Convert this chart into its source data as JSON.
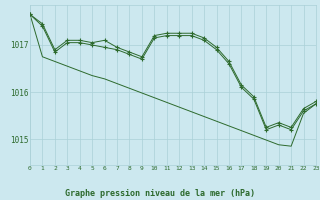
{
  "title": "Graphe pression niveau de la mer (hPa)",
  "bg_color": "#cce8ef",
  "grid_color": "#aad0d8",
  "line_color": "#2d6a2d",
  "xlim": [
    0,
    23
  ],
  "ylim": [
    1014.45,
    1017.85
  ],
  "yticks": [
    1015,
    1016,
    1017
  ],
  "xticks": [
    0,
    1,
    2,
    3,
    4,
    5,
    6,
    7,
    8,
    9,
    10,
    11,
    12,
    13,
    14,
    15,
    16,
    17,
    18,
    19,
    20,
    21,
    22,
    23
  ],
  "series1_x": [
    0,
    1,
    2,
    3,
    4,
    5,
    6,
    7,
    8,
    9,
    10,
    11,
    12,
    13,
    14,
    15,
    16,
    17,
    18,
    19,
    20,
    21,
    22,
    23
  ],
  "series1_y": [
    1017.65,
    1017.4,
    1016.85,
    1017.05,
    1017.05,
    1017.0,
    1016.95,
    1016.9,
    1016.8,
    1016.7,
    1017.15,
    1017.2,
    1017.2,
    1017.2,
    1017.1,
    1016.9,
    1016.6,
    1016.1,
    1015.85,
    1015.2,
    1015.3,
    1015.2,
    1015.6,
    1015.75
  ],
  "series2_x": [
    0,
    1,
    2,
    3,
    4,
    5,
    6,
    7,
    8,
    9,
    10,
    11,
    12,
    13,
    14,
    15,
    16,
    17,
    18,
    19,
    20,
    21,
    22,
    23
  ],
  "series2_y": [
    1017.65,
    1017.45,
    1016.9,
    1017.1,
    1017.1,
    1017.05,
    1017.1,
    1016.95,
    1016.85,
    1016.75,
    1017.2,
    1017.25,
    1017.25,
    1017.25,
    1017.15,
    1016.95,
    1016.65,
    1016.15,
    1015.9,
    1015.25,
    1015.35,
    1015.25,
    1015.65,
    1015.8
  ],
  "series3_x": [
    0,
    1,
    2,
    3,
    4,
    5,
    6,
    7,
    8,
    9,
    10,
    11,
    12,
    13,
    14,
    15,
    16,
    17,
    18,
    19,
    20,
    21,
    22,
    23
  ],
  "series3_y": [
    1017.65,
    1016.75,
    1016.65,
    1016.55,
    1016.45,
    1016.35,
    1016.28,
    1016.18,
    1016.08,
    1015.98,
    1015.88,
    1015.78,
    1015.68,
    1015.58,
    1015.48,
    1015.38,
    1015.28,
    1015.18,
    1015.08,
    1014.98,
    1014.88,
    1014.85,
    1015.55,
    1015.75
  ]
}
